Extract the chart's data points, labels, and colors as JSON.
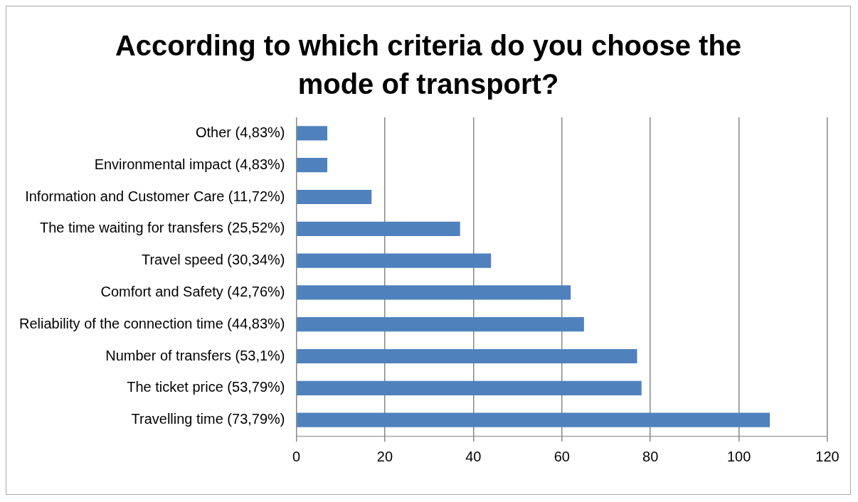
{
  "chart_data": {
    "type": "bar",
    "orientation": "horizontal",
    "title": "According to which criteria do you choose the mode of transport?",
    "categories": [
      "Other (4,83%)",
      "Environmental impact (4,83%)",
      "Information and Customer Care (11,72%)",
      "The time waiting for transfers (25,52%)",
      "Travel speed (30,34%)",
      "Comfort and Safety (42,76%)",
      "Reliability of the connection time (44,83%)",
      "Number of transfers (53,1%)",
      "The ticket price (53,79%)",
      "Travelling time (73,79%)"
    ],
    "values": [
      7,
      7,
      17,
      37,
      44,
      62,
      65,
      77,
      78,
      107
    ],
    "color": "#4f81bd",
    "xlim": [
      0,
      120
    ],
    "xticks": [
      0,
      20,
      40,
      60,
      80,
      100,
      120
    ],
    "grid": "x",
    "legend": false
  }
}
